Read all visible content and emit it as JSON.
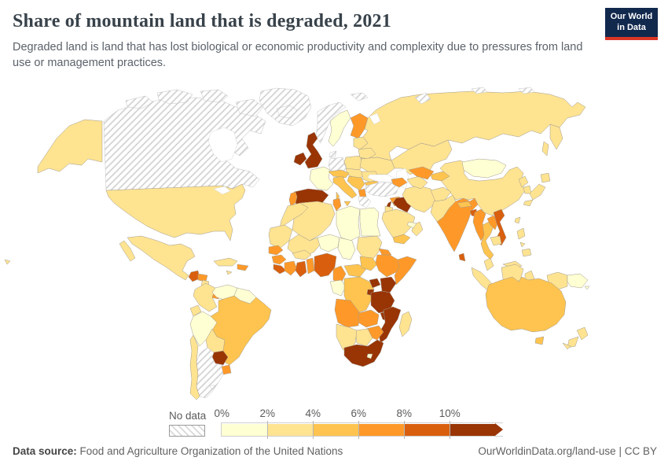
{
  "header": {
    "title": "Share of mountain land that is degraded, 2021",
    "subtitle": "Degraded land is land that has lost biological or economic productivity and complexity due to pressures from land use or management practices.",
    "logo": {
      "line1": "Our World",
      "line2": "in Data",
      "bg_color": "#12294e",
      "accent_color": "#dc3627"
    }
  },
  "legend": {
    "no_data_label": "No data",
    "bins": [
      {
        "tick": "0%",
        "range": "0-2",
        "color": "#ffffd4"
      },
      {
        "tick": "2%",
        "range": "2-4",
        "color": "#fee391"
      },
      {
        "tick": "4%",
        "range": "4-6",
        "color": "#fec44f"
      },
      {
        "tick": "6%",
        "range": "6-8",
        "color": "#fe9929"
      },
      {
        "tick": "8%",
        "range": "8-10",
        "color": "#d95f0e"
      },
      {
        "tick": "10%",
        "range": "10+",
        "color": "#993404"
      }
    ]
  },
  "footer": {
    "source_label": "Data source:",
    "source": "Food and Agriculture Organization of the United Nations",
    "url": "OurWorldinData.org/land-use",
    "separator": "|",
    "license": "CC BY"
  },
  "chart_data": {
    "type": "choropleth-map",
    "title": "Share of mountain land that is degraded",
    "year": 2021,
    "unit": "% of mountain land degraded",
    "bin_colors": {
      "0-2": "#ffffd4",
      "2-4": "#fee391",
      "4-6": "#fec44f",
      "6-8": "#fe9929",
      "8-10": "#d95f0e",
      "10+": "#993404"
    },
    "no_data_style": "white-diagonal-hatch",
    "countries": {
      "greenland": "no-data",
      "canada": "no-data",
      "arctic-islands": "no-data",
      "united-states": "2-4",
      "mexico": "2-4",
      "guatemala": "8-10",
      "honduras": "6-8",
      "nicaragua": "2-4",
      "costa-rica": "4-6",
      "panama": "6-8",
      "cuba": "2-4",
      "jamaica": "2-4",
      "hispaniola": "6-8",
      "colombia": "2-4",
      "venezuela": "0-2",
      "guianas": "0-2",
      "ecuador": "2-4",
      "peru": "0-2",
      "brazil": "4-6",
      "bolivia": "2-4",
      "paraguay": "10+",
      "uruguay": "6-8",
      "argentina": "no-data",
      "chile": "2-4",
      "falkland-islands": "no-data",
      "iceland": "no-data",
      "ireland": "10+",
      "united-kingdom": "10+",
      "norway": "no-data",
      "sweden": "0-2",
      "finland": "6-8",
      "denmark": "no-data",
      "germany": "no-data",
      "poland": "2-4",
      "baltic-states": "2-4",
      "belarus": "2-4",
      "ukraine": "2-4",
      "czechia-slovakia-hungary": "2-4",
      "france": "0-2",
      "switzerland-austria": "4-6",
      "italy": "4-6",
      "balkans": "4-6",
      "albania-north-macedonia": "6-8",
      "romania": "2-4",
      "bulgaria": "4-6",
      "greece": "no-data",
      "spain": "10+",
      "portugal": "6-8",
      "russia": "2-4",
      "svalbard": "no-data",
      "novaya-zemlya": "no-data",
      "severnaya-zemlya": "no-data",
      "new-siberian-islands": "no-data",
      "kazakhstan": "2-4",
      "turkey": "no-data",
      "caucasus": "6-8",
      "syria": "6-8",
      "lebanon": "10+",
      "israel-jordan": "2-4",
      "iraq": "10+",
      "saudi-arabia": "2-4",
      "yemen": "4-6",
      "oman": "2-4",
      "uae-qatar": "0-2",
      "iran": "2-4",
      "afghanistan": "2-4",
      "pakistan": "2-4",
      "turkmenistan": "2-4",
      "uzbekistan": "6-8",
      "kyrgyzstan-tajikistan": "4-6",
      "india": "6-8",
      "nepal": "4-6",
      "bangladesh": "8-10",
      "sri-lanka": "8-10",
      "china": "2-4",
      "mongolia": "0-2",
      "north-korea": "2-4",
      "south-korea": "2-4",
      "japan": "2-4",
      "taiwan": "2-4",
      "myanmar": "6-8",
      "thailand": "4-6",
      "laos": "6-8",
      "vietnam": "8-10",
      "cambodia": "2-4",
      "malaysia": "2-4",
      "indonesia": "2-4",
      "papua-new-guinea": "0-2",
      "timor-leste": "0-2",
      "philippines": "2-4",
      "morocco": "2-4",
      "algeria": "2-4",
      "tunisia": "6-8",
      "libya": "0-2",
      "egypt": "0-2",
      "mauritania": "2-4",
      "mali": "2-4",
      "niger": "0-2",
      "chad": "0-2",
      "sudan": "2-4",
      "eritrea": "6-8",
      "ethiopia": "6-8",
      "somalia": "6-8",
      "senegal": "6-8",
      "guinea": "6-8",
      "sierra-leone-liberia": "8-10",
      "ivory-coast": "6-8",
      "ghana": "8-10",
      "togo-benin": "6-8",
      "burkina-faso": "2-4",
      "nigeria": "8-10",
      "cameroon": "6-8",
      "central-african-republic": "4-6",
      "south-sudan": "4-6",
      "gabon-congo": "0-2",
      "drc": "4-6",
      "uganda": "10+",
      "kenya": "10+",
      "rwanda-burundi": "10+",
      "tanzania": "10+",
      "malawi": "10+",
      "mozambique": "10+",
      "angola": "6-8",
      "zambia": "6-8",
      "zimbabwe": "6-8",
      "botswana": "2-4",
      "namibia": "2-4",
      "south-africa": "10+",
      "lesotho": "0-2",
      "madagascar": "2-4",
      "australia": "4-6",
      "new-zealand": "2-4",
      "new-caledonia": "2-4",
      "fiji": "0-2"
    }
  }
}
